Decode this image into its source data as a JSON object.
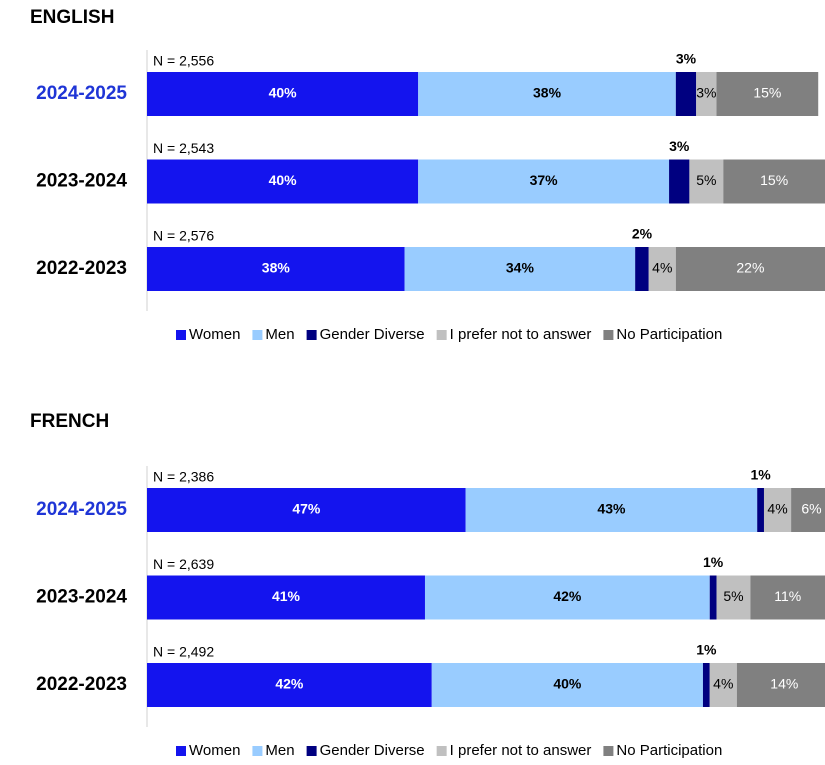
{
  "chart_data": [
    {
      "type": "stacked-bar-horizontal",
      "title": "ENGLISH",
      "categories": [
        "2024-2025",
        "2023-2024",
        "2022-2023"
      ],
      "category_colors": [
        "#1f35d6",
        "#000000",
        "#000000"
      ],
      "n_labels": [
        "N = 2,556",
        "N = 2,543",
        "N = 2,576"
      ],
      "xlim": [
        0,
        100
      ],
      "series": [
        {
          "name": "Women",
          "color": "#1414ee",
          "label_color": "#ffffff",
          "bold": true,
          "values": [
            40,
            40,
            38
          ],
          "value_labels": [
            "40%",
            "40%",
            "38%"
          ]
        },
        {
          "name": "Men",
          "color": "#99ccff",
          "label_color": "#000000",
          "bold": true,
          "values": [
            38,
            37,
            34
          ],
          "value_labels": [
            "38%",
            "37%",
            "34%"
          ]
        },
        {
          "name": "Gender Diverse",
          "color": "#000080",
          "label_color": "#000000",
          "bold": true,
          "label_position": "above",
          "values": [
            3,
            3,
            2
          ],
          "value_labels": [
            "3%",
            "3%",
            "2%"
          ]
        },
        {
          "name": "I prefer not to answer",
          "color": "#c0c0c0",
          "label_color": "#000000",
          "bold": false,
          "values": [
            3,
            5,
            4
          ],
          "value_labels": [
            "3%",
            "5%",
            "4%"
          ]
        },
        {
          "name": "No Participation",
          "color": "#808080",
          "label_color": "#ffffff",
          "bold": false,
          "values": [
            15,
            15,
            22
          ],
          "value_labels": [
            "15%",
            "15%",
            "22%"
          ]
        }
      ]
    },
    {
      "type": "stacked-bar-horizontal",
      "title": "FRENCH",
      "categories": [
        "2024-2025",
        "2023-2024",
        "2022-2023"
      ],
      "category_colors": [
        "#1f35d6",
        "#000000",
        "#000000"
      ],
      "n_labels": [
        "N = 2,386",
        "N = 2,639",
        "N = 2,492"
      ],
      "xlim": [
        0,
        100
      ],
      "series": [
        {
          "name": "Women",
          "color": "#1414ee",
          "label_color": "#ffffff",
          "bold": true,
          "values": [
            47,
            41,
            42
          ],
          "value_labels": [
            "47%",
            "41%",
            "42%"
          ]
        },
        {
          "name": "Men",
          "color": "#99ccff",
          "label_color": "#000000",
          "bold": true,
          "values": [
            43,
            42,
            40
          ],
          "value_labels": [
            "43%",
            "42%",
            "40%"
          ]
        },
        {
          "name": "Gender Diverse",
          "color": "#000080",
          "label_color": "#000000",
          "bold": true,
          "label_position": "above",
          "values": [
            1,
            1,
            1
          ],
          "value_labels": [
            "1%",
            "1%",
            "1%"
          ]
        },
        {
          "name": "I prefer not to answer",
          "color": "#c0c0c0",
          "label_color": "#000000",
          "bold": false,
          "values": [
            4,
            5,
            4
          ],
          "value_labels": [
            "4%",
            "5%",
            "4%"
          ]
        },
        {
          "name": "No Participation",
          "color": "#808080",
          "label_color": "#ffffff",
          "bold": false,
          "values": [
            6,
            11,
            14
          ],
          "value_labels": [
            "6%",
            "11%",
            "14%"
          ]
        }
      ]
    }
  ]
}
